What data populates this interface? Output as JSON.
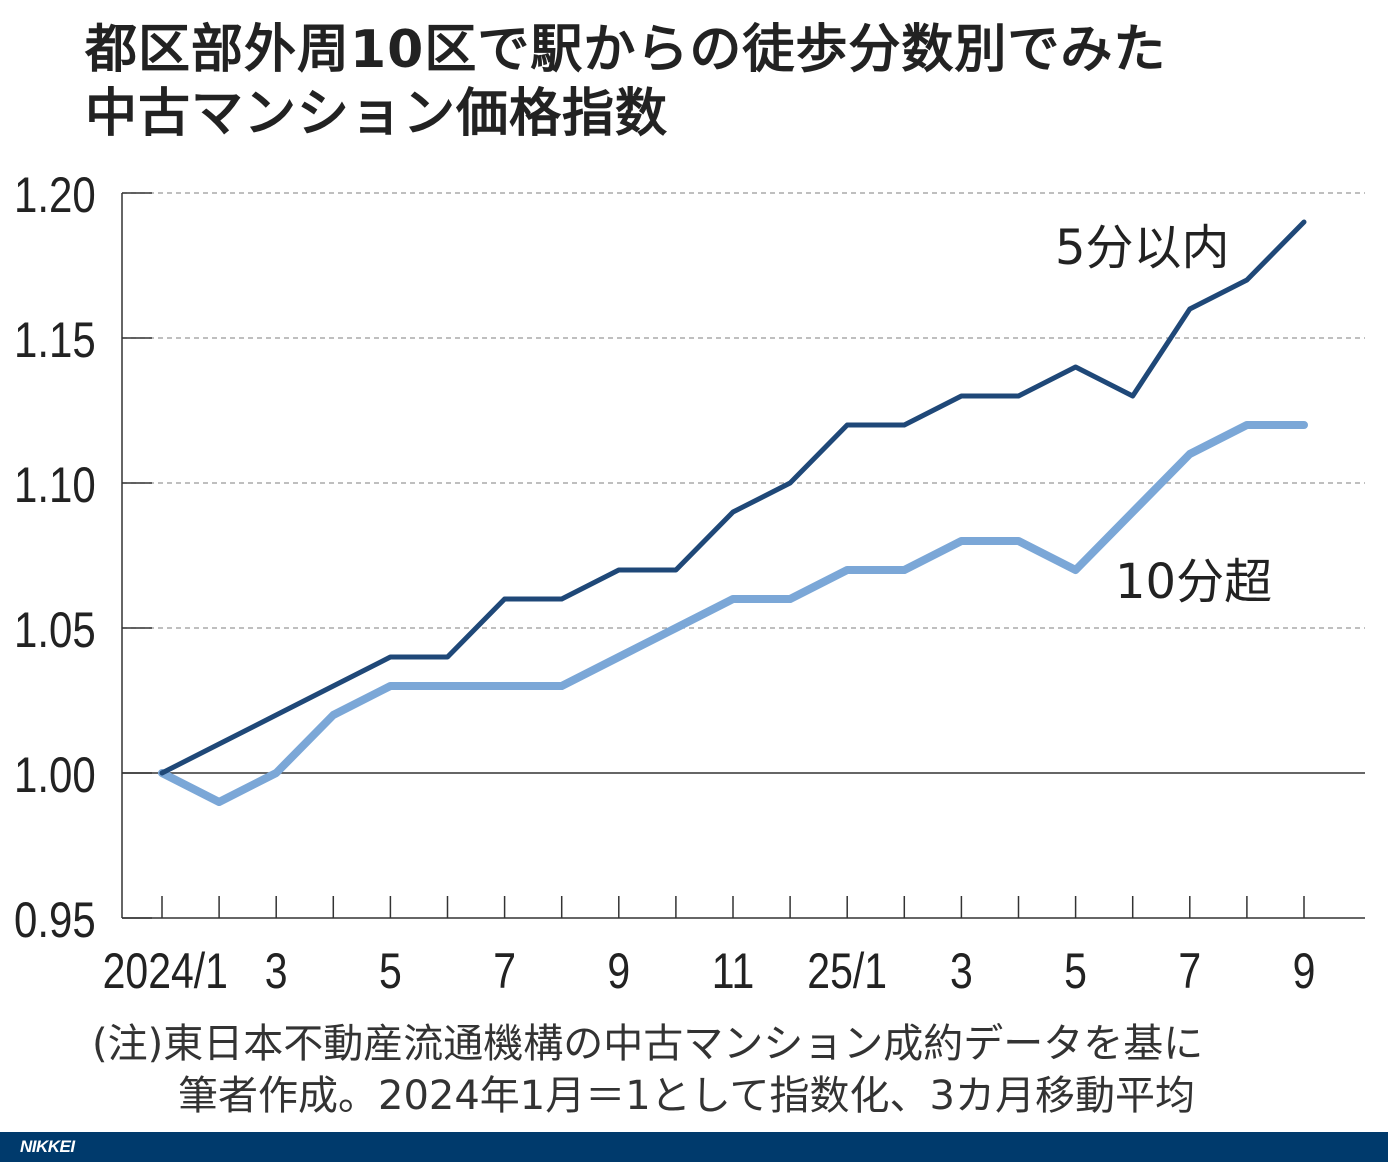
{
  "title_lines": [
    "都区部外周10区で駅からの徒歩分数別でみた",
    "中古マンション価格指数"
  ],
  "note_lines": [
    "(注)東日本不動産流通機構の中古マンション成約データを基に",
    "筆者作成。2024年1月＝1として指数化、3カ月移動平均"
  ],
  "logo": "NIKKEI",
  "chart_data": {
    "type": "line",
    "title": "都区部外周10区で駅からの徒歩分数別でみた中古マンション価格指数",
    "xlabel": "",
    "ylabel": "",
    "x": [
      "2024/1",
      "2024/2",
      "2024/3",
      "2024/4",
      "2024/5",
      "2024/6",
      "2024/7",
      "2024/8",
      "2024/9",
      "2024/10",
      "2024/11",
      "2024/12",
      "2025/1",
      "2025/2",
      "2025/3",
      "2025/4",
      "2025/5",
      "2025/6",
      "2025/7",
      "2025/8",
      "2025/9"
    ],
    "x_tick_labels": [
      "2024/1",
      "",
      "3",
      "",
      "5",
      "",
      "7",
      "",
      "9",
      "",
      "11",
      "",
      "25/1",
      "",
      "3",
      "",
      "5",
      "",
      "7",
      "",
      "9"
    ],
    "y_ticks": [
      "0.95",
      "1.00",
      "1.05",
      "1.10",
      "1.15",
      "1.20"
    ],
    "ylim": [
      0.95,
      1.2
    ],
    "grid": "horizontal dashed",
    "series": [
      {
        "name": "5分以内",
        "color": "#1f4878",
        "values": [
          1.0,
          1.01,
          1.02,
          1.03,
          1.04,
          1.04,
          1.06,
          1.06,
          1.07,
          1.07,
          1.09,
          1.1,
          1.12,
          1.12,
          1.13,
          1.13,
          1.14,
          1.13,
          1.16,
          1.17,
          1.19
        ]
      },
      {
        "name": "10分超",
        "color": "#7ba7d7",
        "values": [
          1.0,
          0.99,
          1.0,
          1.02,
          1.03,
          1.03,
          1.03,
          1.03,
          1.04,
          1.05,
          1.06,
          1.06,
          1.07,
          1.07,
          1.08,
          1.08,
          1.07,
          1.09,
          1.11,
          1.12,
          1.12
        ]
      }
    ]
  }
}
